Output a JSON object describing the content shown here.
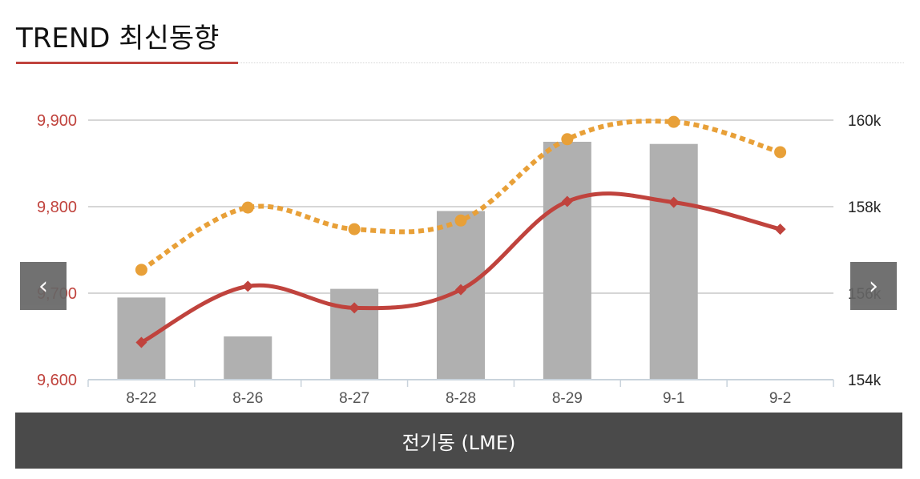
{
  "header": {
    "title": "TREND 최신동향"
  },
  "nav": {
    "prev_icon": "chevron-left-icon",
    "next_icon": "chevron-right-icon",
    "prev_glyph": "‹",
    "next_glyph": "›"
  },
  "caption": "전기동 (LME)",
  "colors": {
    "accent": "#c0433d",
    "dotted_line": "#e8a038",
    "bars": "#b0b0b0",
    "caption_bg": "#4a4a4a"
  },
  "chart_data": {
    "type": "bar",
    "categories": [
      "8-22",
      "8-26",
      "8-27",
      "8-28",
      "8-29",
      "9-1",
      "9-2"
    ],
    "left_axis": {
      "ylim": [
        9600,
        9900
      ],
      "ticks": [
        "9,600",
        "9,700",
        "9,800",
        "9,900"
      ],
      "tick_values": [
        9600,
        9700,
        9800,
        9900
      ]
    },
    "right_axis": {
      "ylim": [
        154000,
        160000
      ],
      "ticks": [
        "154k",
        "156k",
        "158k",
        "160k"
      ],
      "tick_values": [
        154000,
        156000,
        158000,
        160000
      ]
    },
    "series": [
      {
        "type": "bar",
        "axis": "right",
        "values": [
          155900,
          155000,
          156100,
          157900,
          159500,
          159450,
          null
        ]
      },
      {
        "type": "line",
        "axis": "left",
        "style": "solid",
        "marker": "diamond",
        "values": [
          9643,
          9708,
          9683,
          9704,
          9806,
          9805,
          9774
        ]
      },
      {
        "type": "line",
        "axis": "left",
        "style": "dotted",
        "marker": "circle",
        "values": [
          9727,
          9799,
          9774,
          9784,
          9878,
          9898,
          9863
        ]
      }
    ],
    "grid": true
  }
}
